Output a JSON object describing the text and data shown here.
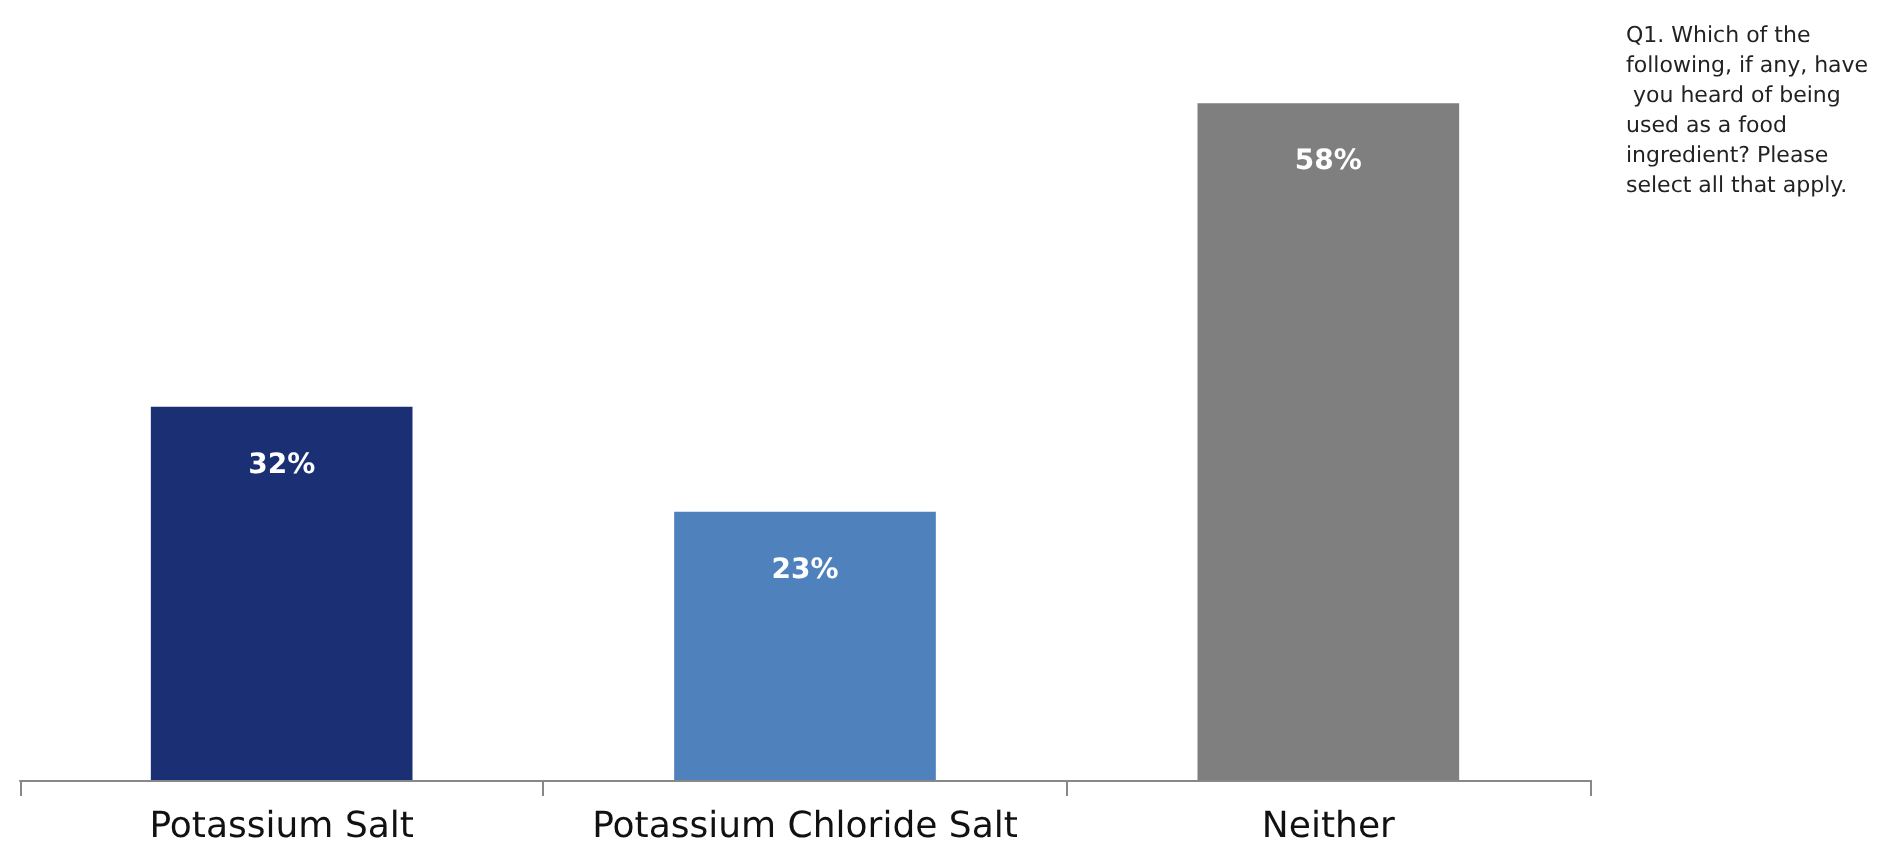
{
  "chart_data": {
    "type": "bar",
    "categories": [
      "Potassium Salt",
      "Potassium Chloride Salt",
      "Neither"
    ],
    "values": [
      32,
      23,
      58
    ],
    "colors": [
      "#1a2f74",
      "#4f81bd",
      "#7f7f7f"
    ],
    "value_labels": [
      "32%",
      "23%",
      "58%"
    ],
    "annotations": [
      "Q1. Which of the following, if any, have you heard of being used as a food ingredient? Please select all that apply."
    ]
  }
}
